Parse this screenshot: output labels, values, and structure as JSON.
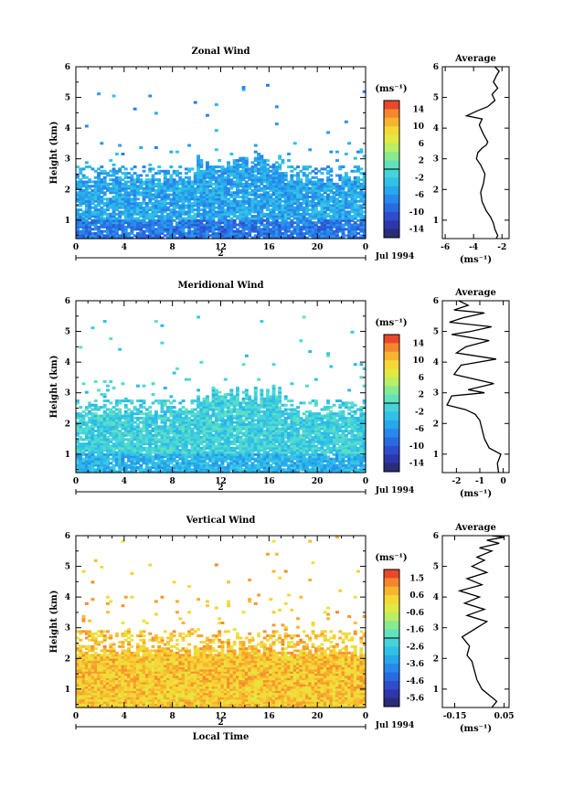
{
  "chart_data": [
    {
      "type": "heatmap",
      "title": "Zonal Wind",
      "ylabel": "Height (km)",
      "x_ticks": [
        "0",
        "4",
        "8",
        "12",
        "16",
        "20",
        "0"
      ],
      "y_ticks": [
        "1",
        "2",
        "3",
        "4",
        "5",
        "6"
      ],
      "xlim": [
        0,
        24
      ],
      "ylim": [
        0.4,
        6
      ],
      "date_marker": "2",
      "date_label": "Jul 1994",
      "colorbar": {
        "unit": "(ms⁻¹)",
        "labels": [
          "14",
          "10",
          "6",
          "2",
          "-2",
          "-6",
          "-10",
          "-14"
        ],
        "range": [
          -16,
          16
        ]
      },
      "field": {
        "mean_top_km": 2.35,
        "cloud_top_km": 2.75,
        "anomaly_top_km": 3.5,
        "scatter_top_km": 5.5,
        "mean_value": -5,
        "near_surface_value": -8,
        "fill_probability": 0.7,
        "patches": [
          {
            "t_start": 10,
            "t_end": 17,
            "top_km": 3.2
          },
          {
            "t_start": 20,
            "t_end": 24,
            "top_km": 1.9
          }
        ]
      }
    },
    {
      "type": "line",
      "title": "Average",
      "xlabel": "(ms⁻¹)",
      "x_ticks": [
        "-6",
        "-4",
        "-2"
      ],
      "y_ticks": [
        "1",
        "2",
        "3",
        "4",
        "5",
        "6"
      ],
      "xlim": [
        -6.2,
        -1.5
      ],
      "ylim": [
        0.4,
        6
      ],
      "series": [
        {
          "x": [
            -2.4,
            -2.3,
            -2.5,
            -2.6,
            -2.8,
            -3.1,
            -3.4,
            -3.5,
            -3.3,
            -3.2,
            -3.5,
            -3.8,
            -3.7,
            -3.4,
            -3.1,
            -3.0,
            -3.3,
            -3.6,
            -3.4,
            -4.5,
            -3.8,
            -3.0,
            -2.5,
            -2.7,
            -2.3,
            -2.6,
            -2.4,
            -2.2,
            -2.5
          ],
          "y": [
            0.4,
            0.5,
            0.7,
            0.9,
            1.1,
            1.3,
            1.6,
            1.9,
            2.2,
            2.5,
            2.8,
            3.0,
            3.2,
            3.35,
            3.45,
            3.55,
            3.8,
            4.1,
            4.3,
            4.4,
            4.55,
            4.7,
            4.9,
            5.1,
            5.3,
            5.5,
            5.7,
            5.85,
            6.0
          ]
        }
      ]
    },
    {
      "type": "heatmap",
      "title": "Meridional Wind",
      "ylabel": "Height (km)",
      "x_ticks": [
        "0",
        "4",
        "8",
        "12",
        "16",
        "20",
        "0"
      ],
      "y_ticks": [
        "1",
        "2",
        "3",
        "4",
        "5",
        "6"
      ],
      "xlim": [
        0,
        24
      ],
      "ylim": [
        0.4,
        6
      ],
      "date_marker": "2",
      "date_label": "Jul 1994",
      "colorbar": {
        "unit": "(ms⁻¹)",
        "labels": [
          "14",
          "10",
          "6",
          "2",
          "-2",
          "-6",
          "-10",
          "-14"
        ],
        "range": [
          -16,
          16
        ]
      },
      "field": {
        "mean_top_km": 2.3,
        "cloud_top_km": 2.75,
        "anomaly_top_km": 3.5,
        "scatter_top_km": 5.5,
        "mean_value": -1.5,
        "near_surface_value": -4,
        "fill_probability": 0.72,
        "patches": [
          {
            "t_start": 10,
            "t_end": 17,
            "top_km": 3.2
          }
        ]
      }
    },
    {
      "type": "line",
      "title": "Average",
      "xlabel": "(ms⁻¹)",
      "x_ticks": [
        "-2",
        "-1",
        "0"
      ],
      "y_ticks": [
        "1",
        "2",
        "3",
        "4",
        "5",
        "6"
      ],
      "xlim": [
        -2.6,
        0.25
      ],
      "ylim": [
        0.4,
        6
      ],
      "series": [
        {
          "x": [
            -0.2,
            -0.25,
            -0.1,
            -0.6,
            -0.8,
            -0.9,
            -1.0,
            -1.2,
            -1.6,
            -2.4,
            -2.2,
            -0.8,
            -1.5,
            -0.4,
            -2.1,
            -1.8,
            -0.3,
            -2.0,
            -1.6,
            -0.6,
            -2.2,
            -1.4,
            -0.5,
            -2.3,
            -1.7,
            -0.8,
            -2.1,
            -1.5,
            -1.9
          ],
          "y": [
            0.4,
            0.7,
            1.0,
            1.2,
            1.5,
            1.8,
            2.1,
            2.3,
            2.45,
            2.6,
            2.9,
            3.0,
            3.1,
            3.3,
            3.6,
            3.9,
            4.1,
            4.3,
            4.5,
            4.7,
            4.9,
            5.0,
            5.15,
            5.3,
            5.45,
            5.6,
            5.7,
            5.85,
            6.0
          ]
        }
      ]
    },
    {
      "type": "heatmap",
      "title": "Vertical Wind",
      "ylabel": "Height (km)",
      "xlabel": "Local Time",
      "x_ticks": [
        "0",
        "4",
        "8",
        "12",
        "16",
        "20",
        "0"
      ],
      "y_ticks": [
        "1",
        "2",
        "3",
        "4",
        "5",
        "6"
      ],
      "xlim": [
        0,
        24
      ],
      "ylim": [
        0.4,
        6
      ],
      "date_marker": "2",
      "date_label": "Jul 1994",
      "colorbar": {
        "unit": "(ms⁻¹)",
        "labels": [
          "1.5",
          "0.6",
          "-0.6",
          "-1.6",
          "-2.6",
          "-3.6",
          "-4.6",
          "-5.6"
        ],
        "range": [
          -6.1,
          2.0
        ]
      },
      "field": {
        "mean_top_km": 2.2,
        "cloud_top_km": 2.9,
        "anomaly_top_km": 4.0,
        "scatter_top_km": 6.0,
        "mean_value": 0.5,
        "near_surface_value": 0.4,
        "fill_probability": 0.8,
        "patches": [
          {
            "t_start": 11,
            "t_end": 15,
            "top_km": 2.6
          }
        ]
      }
    },
    {
      "type": "line",
      "title": "Average",
      "xlabel": "(ms⁻¹)",
      "x_ticks": [
        "-0.15",
        "0.05"
      ],
      "y_ticks": [
        "1",
        "2",
        "3",
        "4",
        "5",
        "6"
      ],
      "xlim": [
        -0.2,
        0.07
      ],
      "ylim": [
        0.4,
        6
      ],
      "series": [
        {
          "x": [
            0.0,
            0.02,
            -0.01,
            -0.04,
            -0.06,
            -0.07,
            -0.08,
            -0.1,
            -0.09,
            -0.12,
            -0.06,
            -0.02,
            -0.1,
            -0.03,
            -0.11,
            -0.05,
            -0.13,
            -0.04,
            -0.1,
            -0.02,
            -0.08,
            -0.03,
            -0.06,
            0.0,
            -0.05,
            0.03,
            -0.02,
            0.05,
            0.0
          ],
          "y": [
            0.4,
            0.6,
            0.8,
            1.0,
            1.3,
            1.6,
            1.9,
            2.1,
            2.4,
            2.7,
            3.0,
            3.2,
            3.4,
            3.6,
            3.8,
            4.0,
            4.2,
            4.4,
            4.6,
            4.8,
            5.0,
            5.2,
            5.3,
            5.5,
            5.6,
            5.75,
            5.85,
            5.95,
            6.0
          ]
        }
      ]
    }
  ]
}
